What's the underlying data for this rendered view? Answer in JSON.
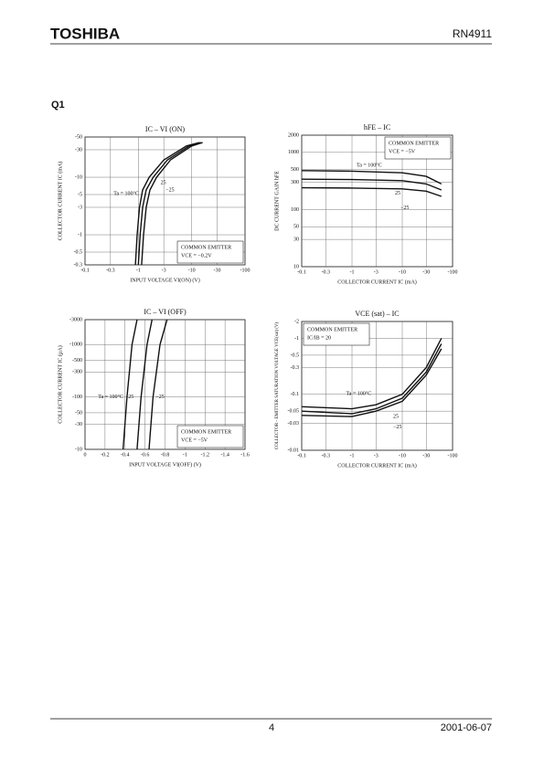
{
  "header": {
    "brand": "TOSHIBA",
    "part": "RN4911"
  },
  "section": "Q1",
  "chart_data": [
    {
      "type": "line",
      "title": "IC – VI (ON)",
      "x_label": "INPUT VOLTAGE VI(ON) (V)",
      "y_label": "COLLECTOR CURRENT IC (mA)",
      "x_log": true,
      "y_log": true,
      "grid": true,
      "xlim": [
        -0.1,
        -100
      ],
      "xticks": [
        -0.1,
        -0.3,
        -1,
        -3,
        -10,
        -30,
        -100
      ],
      "ylim": [
        -0.3,
        -50
      ],
      "yticks": [
        -0.3,
        -0.5,
        -1,
        -3,
        -5,
        -10,
        -30,
        -50
      ],
      "notes": [
        "COMMON EMITTER",
        "VCE = −0.2V"
      ],
      "series": [
        {
          "name": "Ta = 100°C",
          "color": "#111111",
          "x": [
            -0.88,
            -0.95,
            -1.05,
            -1.2,
            -1.6,
            -3,
            -8,
            -14
          ],
          "values": [
            -0.3,
            -1,
            -3,
            -6,
            -10,
            -20,
            -35,
            -40
          ]
        },
        {
          "name": "25",
          "color": "#111111",
          "x": [
            -1.0,
            -1.08,
            -1.2,
            -1.4,
            -1.9,
            -3.5,
            -9,
            -15
          ],
          "values": [
            -0.3,
            -1,
            -3,
            -6,
            -10,
            -20,
            -35,
            -40
          ]
        },
        {
          "name": "−25",
          "color": "#111111",
          "x": [
            -1.15,
            -1.25,
            -1.4,
            -1.65,
            -2.2,
            -4,
            -10,
            -16
          ],
          "values": [
            -0.3,
            -1,
            -3,
            -6,
            -10,
            -20,
            -35,
            -40
          ]
        }
      ]
    },
    {
      "type": "line",
      "title": "hFE – IC",
      "x_label": "COLLECTOR CURRENT IC (mA)",
      "y_label": "DC CURRENT GAIN hFE",
      "x_log": true,
      "y_log": true,
      "grid": true,
      "xlim": [
        -0.1,
        -100
      ],
      "xticks": [
        -0.1,
        -0.3,
        -1,
        -3,
        -10,
        -30,
        -100
      ],
      "ylim": [
        10,
        2000
      ],
      "yticks": [
        10,
        30,
        50,
        100,
        300,
        500,
        1000,
        2000
      ],
      "notes": [
        "COMMON EMITTER",
        "VCE = −5V"
      ],
      "series": [
        {
          "name": "Ta = 100°C",
          "color": "#111111",
          "x": [
            -0.1,
            -1,
            -10,
            -30,
            -60
          ],
          "values": [
            480,
            470,
            440,
            380,
            280
          ]
        },
        {
          "name": "25",
          "color": "#111111",
          "x": [
            -0.1,
            -1,
            -10,
            -30,
            -60
          ],
          "values": [
            340,
            335,
            320,
            280,
            220
          ]
        },
        {
          "name": "−25",
          "color": "#111111",
          "x": [
            -0.1,
            -1,
            -10,
            -30,
            -60
          ],
          "values": [
            240,
            238,
            230,
            210,
            170
          ]
        }
      ]
    },
    {
      "type": "line",
      "title": "IC – VI (OFF)",
      "x_label": "INPUT VOLTAGE VI(OFF) (V)",
      "y_label": "COLLECTOR CURRENT IC (µA)",
      "x_log": false,
      "y_log": true,
      "grid": true,
      "xlim": [
        0,
        -1.6
      ],
      "xticks": [
        0,
        -0.2,
        -0.4,
        -0.6,
        -0.8,
        -1.0,
        -1.2,
        -1.4,
        -1.6
      ],
      "ylim": [
        -10,
        -3000
      ],
      "yticks": [
        -10,
        -30,
        -50,
        -100,
        -300,
        -500,
        -1000,
        -3000
      ],
      "notes": [
        "COMMON EMITTER",
        "VCE = −5V"
      ],
      "series": [
        {
          "name": "Ta = 100°C",
          "color": "#111111",
          "x": [
            -0.38,
            -0.42,
            -0.47,
            -0.52
          ],
          "values": [
            -10,
            -100,
            -1000,
            -3000
          ]
        },
        {
          "name": "25",
          "color": "#111111",
          "x": [
            -0.52,
            -0.56,
            -0.62,
            -0.67
          ],
          "values": [
            -10,
            -100,
            -1000,
            -3000
          ]
        },
        {
          "name": "−25",
          "color": "#111111",
          "x": [
            -0.64,
            -0.68,
            -0.75,
            -0.82
          ],
          "values": [
            -10,
            -100,
            -1000,
            -3000
          ]
        }
      ]
    },
    {
      "type": "line",
      "title": "VCE (sat) – IC",
      "x_label": "COLLECTOR CURRENT IC (mA)",
      "y_label": "COLLECTOR - EMITTER SATURATION VOLTAGE VCE(sat) (V)",
      "x_log": true,
      "y_log": true,
      "grid": true,
      "xlim": [
        -0.1,
        -100
      ],
      "xticks": [
        -0.1,
        -0.3,
        -1,
        -3,
        -10,
        -30,
        -100
      ],
      "ylim": [
        -0.01,
        -2
      ],
      "yticks": [
        -0.01,
        -0.03,
        -0.05,
        -0.1,
        -0.3,
        -0.5,
        -1,
        -2
      ],
      "notes": [
        "COMMON EMITTER",
        "IC/IB = 20"
      ],
      "series": [
        {
          "name": "Ta = 100°C",
          "color": "#111111",
          "x": [
            -0.1,
            -1,
            -3,
            -10,
            -30,
            -60
          ],
          "values": [
            -0.06,
            -0.055,
            -0.065,
            -0.1,
            -0.3,
            -1.0
          ]
        },
        {
          "name": "25",
          "color": "#111111",
          "x": [
            -0.1,
            -1,
            -3,
            -10,
            -30,
            -60
          ],
          "values": [
            -0.05,
            -0.045,
            -0.055,
            -0.085,
            -0.25,
            -0.8
          ]
        },
        {
          "name": "−25",
          "color": "#111111",
          "x": [
            -0.1,
            -1,
            -3,
            -10,
            -30,
            -60
          ],
          "values": [
            -0.042,
            -0.04,
            -0.05,
            -0.075,
            -0.22,
            -0.65
          ]
        }
      ]
    }
  ],
  "footer": {
    "page": "4",
    "date": "2001-06-07"
  }
}
